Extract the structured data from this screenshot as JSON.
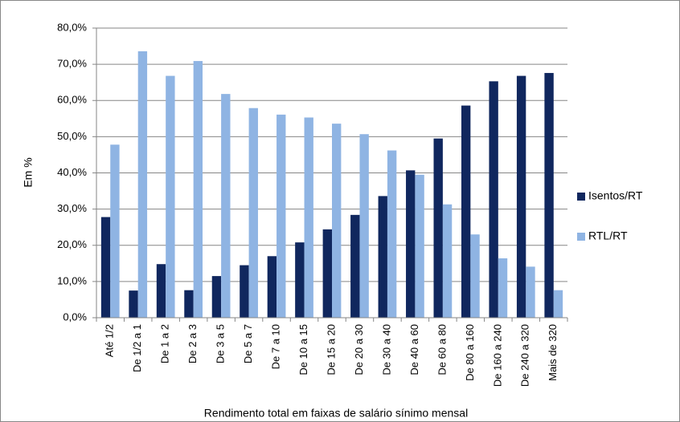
{
  "chart_data": {
    "type": "bar",
    "categories": [
      "Até 1/2",
      "De 1/2 a 1",
      "De 1 a 2",
      "De 2 a 3",
      "De 3 a 5",
      "De 5 a 7",
      "De 7 a 10",
      "De 10 a 15",
      "De 15 a 20",
      "De 20 a 30",
      "De 30 a 40",
      "De 40 a 60",
      "De 60 a 80",
      "De 80 a 160",
      "De 160 a 240",
      "De 240 a 320",
      "Mais de 320"
    ],
    "series": [
      {
        "name": "Isentos/RT",
        "color": "#10275e",
        "values": [
          27.8,
          7.5,
          14.8,
          7.6,
          11.5,
          14.5,
          17.0,
          20.8,
          24.4,
          28.4,
          33.6,
          40.7,
          49.5,
          58.6,
          65.3,
          66.8,
          67.6
        ]
      },
      {
        "name": "RTL/RT",
        "color": "#8fb4e3",
        "values": [
          47.8,
          73.6,
          66.8,
          70.9,
          61.8,
          57.9,
          56.1,
          55.3,
          53.6,
          50.7,
          46.2,
          39.5,
          31.3,
          23.0,
          16.4,
          14.1,
          7.6
        ]
      }
    ],
    "ylabel": "Em %",
    "xlabel": "Rendimento total em faixas de salário sínimo mensal",
    "ylim": [
      0,
      80
    ],
    "yticks": [
      {
        "value": 0,
        "label": "0,0%"
      },
      {
        "value": 10,
        "label": "10,0%"
      },
      {
        "value": 20,
        "label": "20,0%"
      },
      {
        "value": 30,
        "label": "30,0%"
      },
      {
        "value": 40,
        "label": "40,0%"
      },
      {
        "value": 50,
        "label": "50,0%"
      },
      {
        "value": 60,
        "label": "60,0%"
      },
      {
        "value": 70,
        "label": "70,0%"
      },
      {
        "value": 80,
        "label": "80,0%"
      }
    ],
    "grid": true,
    "legend": "right"
  }
}
